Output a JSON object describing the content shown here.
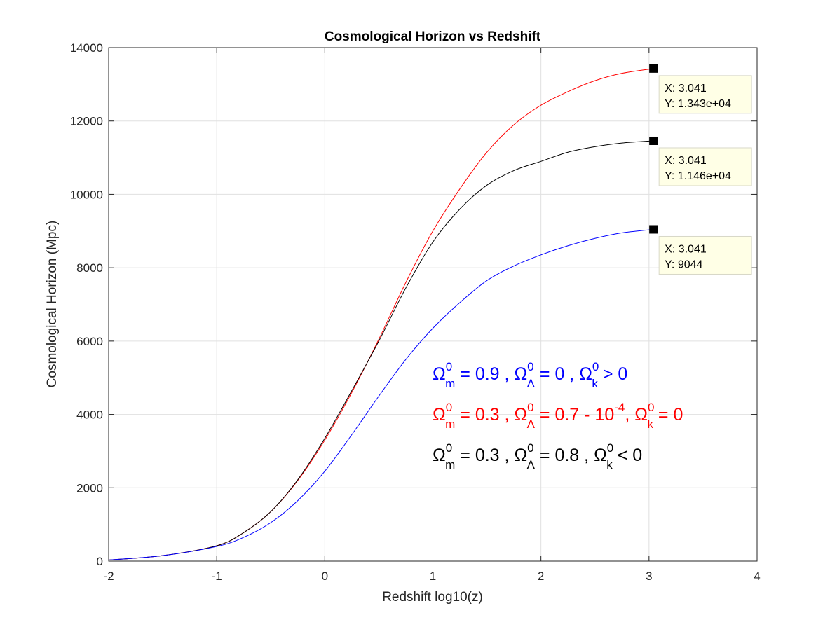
{
  "chart_data": {
    "type": "line",
    "title": "Cosmological Horizon vs Redshift",
    "xlabel": "Redshift log10(z)",
    "ylabel": "Cosmological Horizon (Mpc)",
    "xlim": [
      -2,
      4
    ],
    "ylim": [
      0,
      14000
    ],
    "xticks": [
      -2,
      -1,
      0,
      1,
      2,
      3,
      4
    ],
    "yticks": [
      0,
      2000,
      4000,
      6000,
      8000,
      10000,
      12000,
      14000
    ],
    "xtick_labels": [
      "-2",
      "-1",
      "0",
      "1",
      "2",
      "3",
      "4"
    ],
    "ytick_labels": [
      "0",
      "2000",
      "4000",
      "6000",
      "8000",
      "10000",
      "12000",
      "14000"
    ],
    "grid": true,
    "series": [
      {
        "color": "#ff0000",
        "x": [
          -2,
          -1.5,
          -1,
          -0.75,
          -0.5,
          -0.25,
          0,
          0.25,
          0.5,
          0.75,
          1,
          1.25,
          1.5,
          1.75,
          2,
          2.25,
          2.5,
          2.75,
          3.041
        ],
        "y": [
          30,
          150,
          420,
          780,
          1350,
          2200,
          3300,
          4600,
          6050,
          7600,
          9000,
          10150,
          11150,
          11900,
          12430,
          12800,
          13100,
          13300,
          13430
        ]
      },
      {
        "color": "#000000",
        "x": [
          -2,
          -1.5,
          -1,
          -0.75,
          -0.5,
          -0.25,
          0,
          0.25,
          0.5,
          0.75,
          1,
          1.25,
          1.5,
          1.75,
          2,
          2.25,
          2.5,
          2.75,
          3.041
        ],
        "y": [
          30,
          150,
          420,
          780,
          1350,
          2220,
          3350,
          4650,
          6000,
          7450,
          8700,
          9600,
          10250,
          10650,
          10900,
          11150,
          11300,
          11400,
          11460
        ]
      },
      {
        "color": "#0000ff",
        "x": [
          -2,
          -1.5,
          -1,
          -0.75,
          -0.5,
          -0.25,
          0,
          0.25,
          0.5,
          0.75,
          1,
          1.25,
          1.5,
          1.75,
          2,
          2.25,
          2.5,
          2.75,
          3.041
        ],
        "y": [
          30,
          150,
          400,
          650,
          1050,
          1650,
          2450,
          3450,
          4500,
          5500,
          6350,
          7050,
          7650,
          8050,
          8350,
          8600,
          8800,
          8950,
          9044
        ]
      }
    ],
    "datatips": [
      {
        "x": 3.041,
        "y": 13430,
        "label_x": "X: 3.041",
        "label_y": "Y: 1.343e+04"
      },
      {
        "x": 3.041,
        "y": 11460,
        "label_x": "X: 3.041",
        "label_y": "Y: 1.146e+04"
      },
      {
        "x": 3.041,
        "y": 9044,
        "label_x": "X: 3.041",
        "label_y": "Y: 9044"
      }
    ],
    "annotations": [
      {
        "color": "#0000ff",
        "om_sym": "Ω",
        "om_sub": "m",
        "om_sup": "0",
        "om_val": " = 0.9 , ",
        "ol_sym": "Ω",
        "ol_sub": "Λ",
        "ol_sup": "0",
        "ol_val": " = 0 , ",
        "ol_exp": "",
        "ol_rest": "",
        "ok_sym": "Ω",
        "ok_sub": "k",
        "ok_sup": "0",
        "ok_val": " > 0"
      },
      {
        "color": "#ff0000",
        "om_sym": "Ω",
        "om_sub": "m",
        "om_sup": "0",
        "om_val": " = 0.3 , ",
        "ol_sym": "Ω",
        "ol_sub": "Λ",
        "ol_sup": "0",
        "ol_val": " = 0.7 - 10",
        "ol_exp": "-4",
        "ol_rest": ", ",
        "ok_sym": "Ω",
        "ok_sub": "k",
        "ok_sup": "0",
        "ok_val": " = 0"
      },
      {
        "color": "#000000",
        "om_sym": "Ω",
        "om_sub": "m",
        "om_sup": "0",
        "om_val": " = 0.3 , ",
        "ol_sym": "Ω",
        "ol_sub": "Λ",
        "ol_sup": "0",
        "ol_val": " = 0.8 , ",
        "ol_exp": "",
        "ol_rest": "",
        "ok_sym": "Ω",
        "ok_sub": "k",
        "ok_sup": "0",
        "ok_val": " < 0"
      }
    ]
  }
}
